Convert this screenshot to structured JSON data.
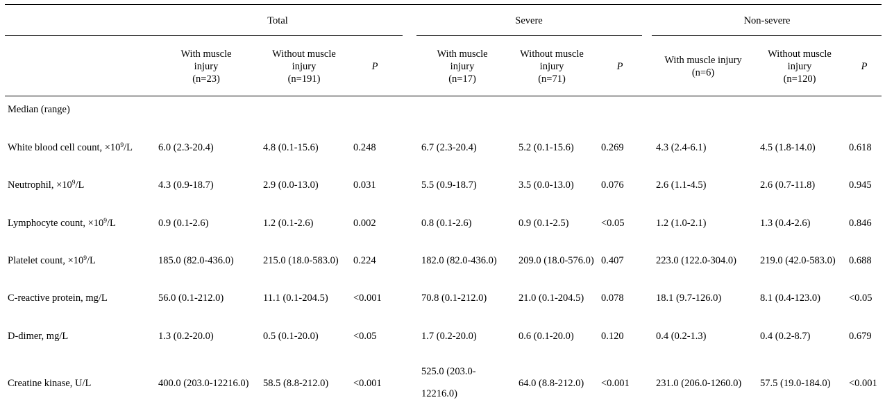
{
  "groups": {
    "total": "Total",
    "severe": "Severe",
    "nonsevere": "Non-severe"
  },
  "sub_headers": {
    "with_line1": "With muscle",
    "with_line2": "injury",
    "without_line1": "Without muscle",
    "without_line2": "injury",
    "p": "P",
    "with_single": "With muscle injury",
    "n_total_with": "(n=23)",
    "n_total_without": "(n=191)",
    "n_severe_with": "(n=17)",
    "n_severe_without": "(n=71)",
    "n_nonsevere_with": "(n=6)",
    "n_nonsevere_without": "(n=120)"
  },
  "section_label": "Median (range)",
  "rows": [
    {
      "label": "White blood cell count, ×10",
      "sup": "9",
      "unit": "/L",
      "cells": [
        "6.0 (2.3-20.4)",
        "4.8 (0.1-15.6)",
        "0.248",
        "6.7 (2.3-20.4)",
        "5.2 (0.1-15.6)",
        "0.269",
        "4.3 (2.4-6.1)",
        "4.5 (1.8-14.0)",
        "0.618"
      ]
    },
    {
      "label": "Neutrophil, ×10",
      "sup": "9",
      "unit": "/L",
      "cells": [
        "4.3 (0.9-18.7)",
        "2.9 (0.0-13.0)",
        "0.031",
        "5.5 (0.9-18.7)",
        "3.5 (0.0-13.0)",
        "0.076",
        "2.6 (1.1-4.5)",
        "2.6 (0.7-11.8)",
        "0.945"
      ]
    },
    {
      "label": "Lymphocyte count, ×10",
      "sup": "9",
      "unit": "/L",
      "cells": [
        "0.9 (0.1-2.6)",
        "1.2 (0.1-2.6)",
        "0.002",
        "0.8 (0.1-2.6)",
        "0.9 (0.1-2.5)",
        "<0.05",
        "1.2 (1.0-2.1)",
        "1.3 (0.4-2.6)",
        "0.846"
      ]
    },
    {
      "label": "Platelet count, ×10",
      "sup": "9",
      "unit": "/L",
      "cells": [
        "185.0 (82.0-436.0)",
        "215.0 (18.0-583.0)",
        "0.224",
        "182.0 (82.0-436.0)",
        "209.0 (18.0-576.0)",
        "0.407",
        "223.0 (122.0-304.0)",
        "219.0 (42.0-583.0)",
        "0.688"
      ]
    },
    {
      "label": "C-reactive protein, mg/L",
      "sup": "",
      "unit": "",
      "cells": [
        "56.0 (0.1-212.0)",
        "11.1 (0.1-204.5)",
        "<0.001",
        "70.8 (0.1-212.0)",
        "21.0 (0.1-204.5)",
        "0.078",
        "18.1 (9.7-126.0)",
        "8.1 (0.4-123.0)",
        "<0.05"
      ]
    },
    {
      "label": "D-dimer, mg/L",
      "sup": "",
      "unit": "",
      "cells": [
        "1.3 (0.2-20.0)",
        "0.5 (0.1-20.0)",
        "<0.05",
        "1.7 (0.2-20.0)",
        "0.6 (0.1-20.0)",
        "0.120",
        "0.4 (0.2-1.3)",
        "0.4 (0.2-8.7)",
        "0.679"
      ]
    },
    {
      "label": "Creatine kinase, U/L",
      "sup": "",
      "unit": "",
      "cells": [
        "400.0 (203.0-12216.0)",
        "58.5 (8.8-212.0)",
        "<0.001",
        "525.0 (203.0-",
        "64.0 (8.8-212.0)",
        "<0.001",
        "231.0 (206.0-1260.0)",
        "57.5 (19.0-184.0)",
        "<0.001"
      ],
      "wrap": "12216.0)"
    }
  ]
}
